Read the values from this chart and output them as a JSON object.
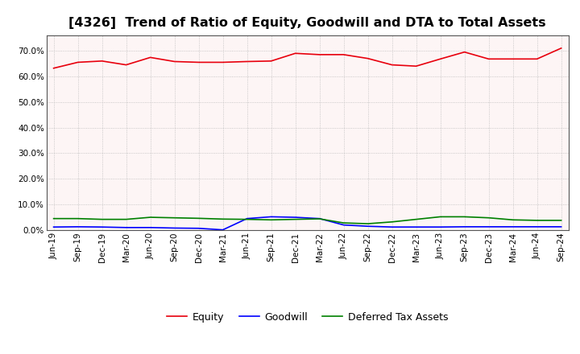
{
  "title": "[4326]  Trend of Ratio of Equity, Goodwill and DTA to Total Assets",
  "labels": [
    "Jun-19",
    "Sep-19",
    "Dec-19",
    "Mar-20",
    "Jun-20",
    "Sep-20",
    "Dec-20",
    "Mar-21",
    "Jun-21",
    "Sep-21",
    "Dec-21",
    "Mar-22",
    "Jun-22",
    "Sep-22",
    "Dec-22",
    "Mar-23",
    "Jun-23",
    "Sep-23",
    "Dec-23",
    "Mar-24",
    "Jun-24",
    "Sep-24"
  ],
  "equity": [
    0.632,
    0.655,
    0.66,
    0.645,
    0.674,
    0.658,
    0.655,
    0.655,
    0.658,
    0.66,
    0.69,
    0.685,
    0.685,
    0.67,
    0.645,
    0.64,
    0.668,
    0.695,
    0.668,
    0.668,
    0.668,
    0.71
  ],
  "goodwill": [
    0.012,
    0.013,
    0.012,
    0.01,
    0.01,
    0.008,
    0.007,
    0.001,
    0.045,
    0.052,
    0.05,
    0.045,
    0.02,
    0.015,
    0.012,
    0.012,
    0.012,
    0.013,
    0.013,
    0.013,
    0.013,
    0.013
  ],
  "dta": [
    0.045,
    0.045,
    0.042,
    0.042,
    0.05,
    0.048,
    0.046,
    0.043,
    0.042,
    0.04,
    0.042,
    0.044,
    0.028,
    0.025,
    0.032,
    0.042,
    0.052,
    0.052,
    0.048,
    0.04,
    0.038,
    0.038
  ],
  "equity_color": "#e8000d",
  "goodwill_color": "#0000ff",
  "dta_color": "#008000",
  "bg_color": "#ffffff",
  "plot_bg_color": "#fdf5f5",
  "grid_color": "#bbbbbb",
  "ylim": [
    0.0,
    0.76
  ],
  "yticks": [
    0.0,
    0.1,
    0.2,
    0.3,
    0.4,
    0.5,
    0.6,
    0.7
  ],
  "legend_labels": [
    "Equity",
    "Goodwill",
    "Deferred Tax Assets"
  ],
  "title_fontsize": 11.5,
  "tick_fontsize": 7.5,
  "legend_fontsize": 9
}
